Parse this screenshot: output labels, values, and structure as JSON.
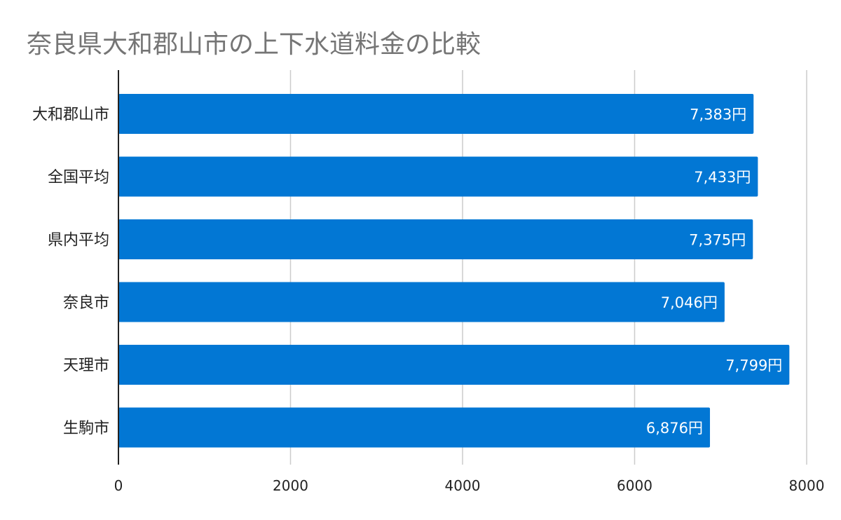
{
  "chart_data": {
    "type": "bar",
    "orientation": "horizontal",
    "title": "奈良県大和郡山市の上下水道料金の比較",
    "categories": [
      "大和郡山市",
      "全国平均",
      "県内平均",
      "奈良市",
      "天理市",
      "生駒市"
    ],
    "values": [
      7383,
      7433,
      7375,
      7046,
      7799,
      6876
    ],
    "value_labels": [
      "7,383円",
      "7,433円",
      "7,375円",
      "7,046円",
      "7,799円",
      "6,876円"
    ],
    "xlim": [
      0,
      8000
    ],
    "x_ticks": [
      0,
      2000,
      4000,
      6000,
      8000
    ],
    "grid": true,
    "bar_color": "#0277d4",
    "grid_color": "#cccccc",
    "axis_color": "#222222"
  }
}
